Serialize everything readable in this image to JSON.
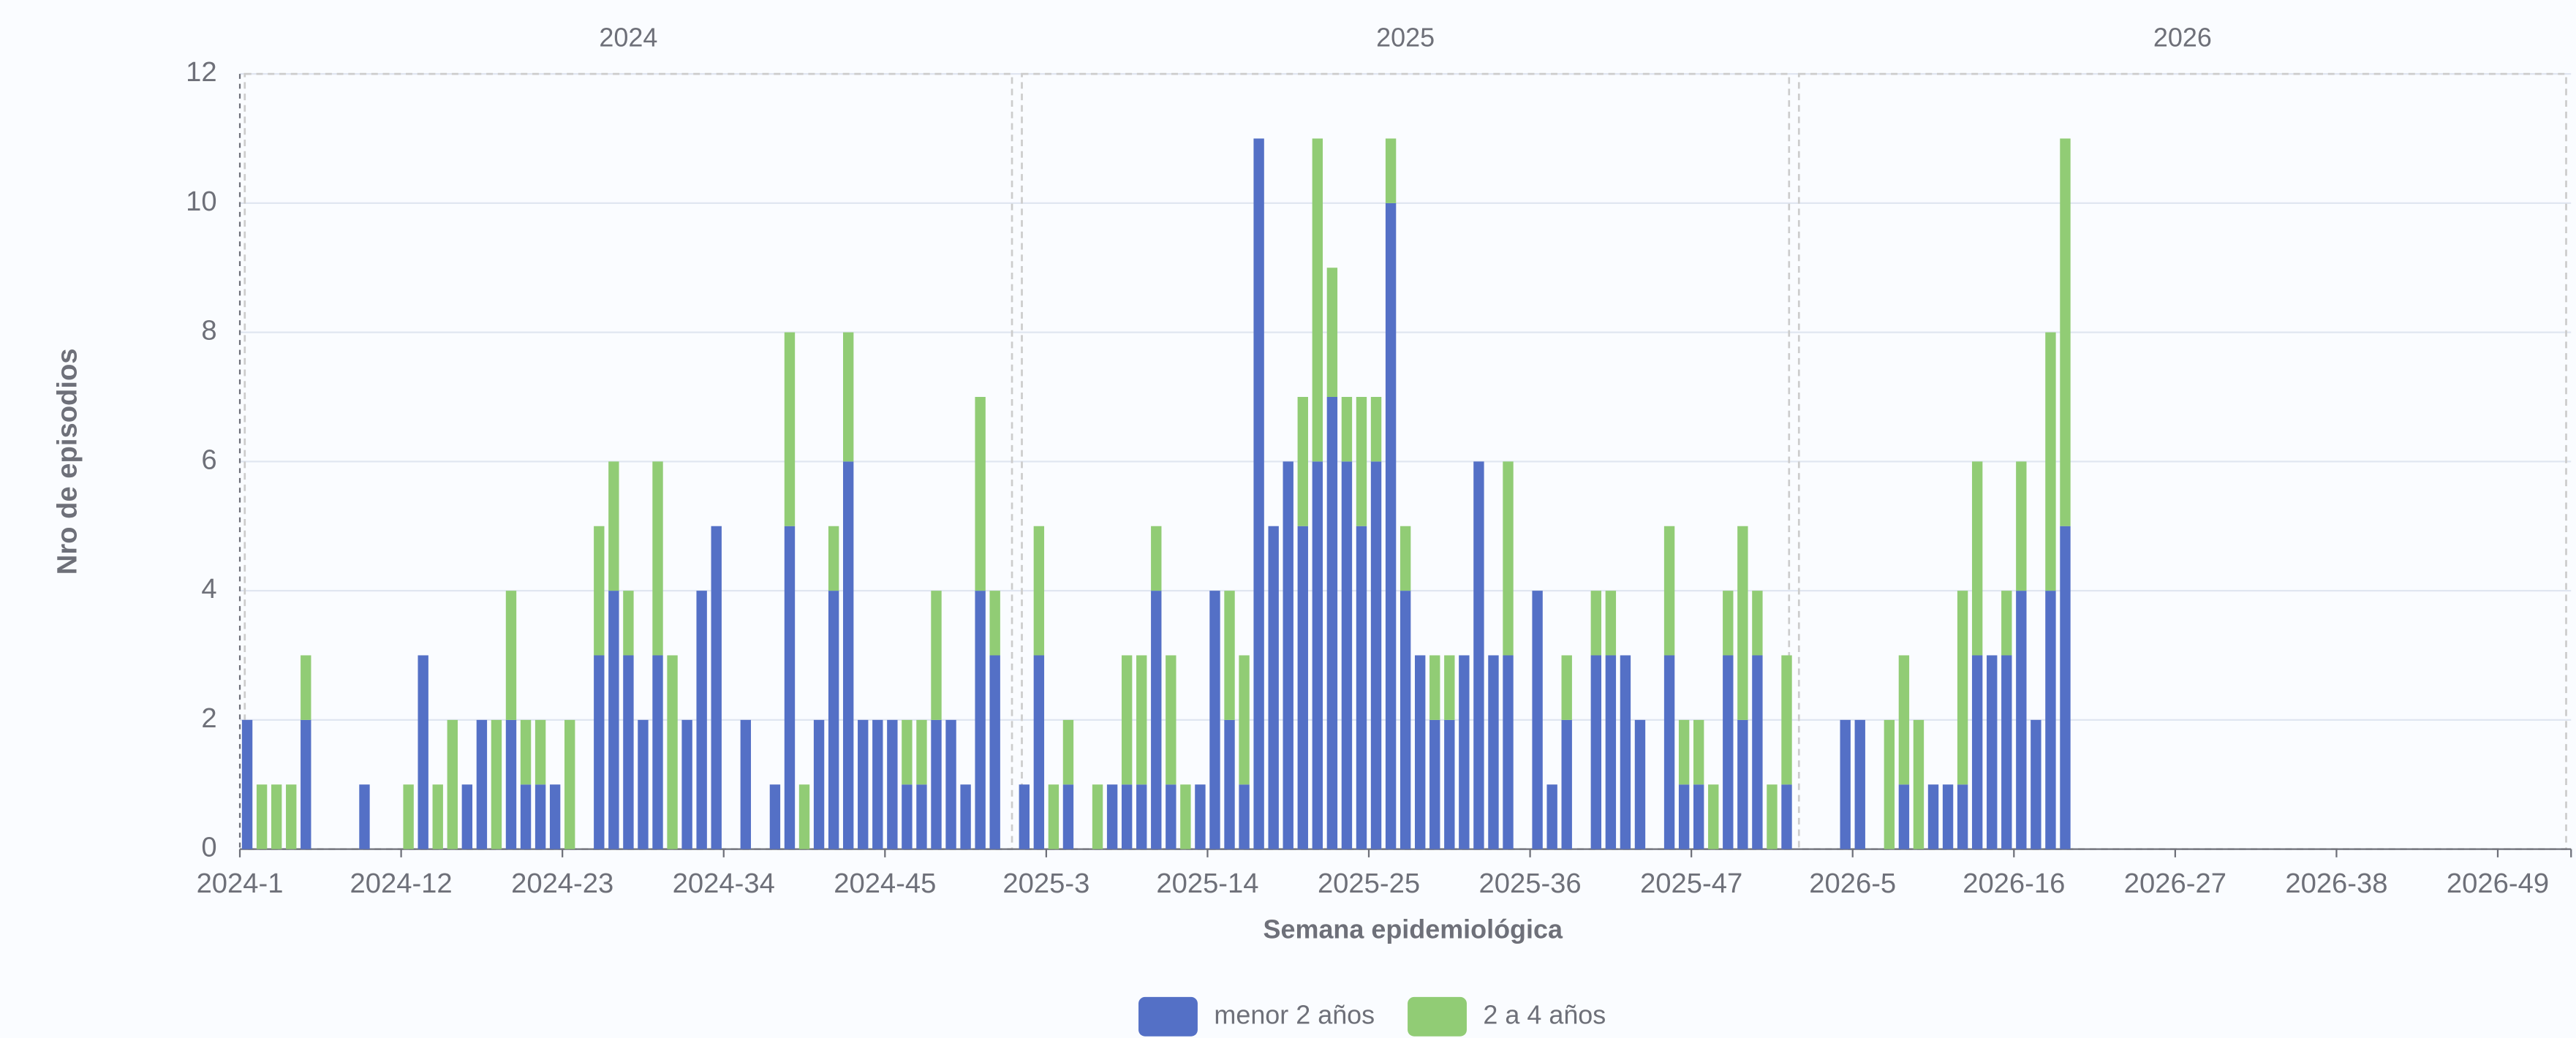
{
  "chart_data": {
    "type": "stacked_bar",
    "facets": [
      "2024",
      "2025",
      "2026"
    ],
    "x_label": "Semana epidemiológica",
    "y_label": "Nro de episodios",
    "categories": [
      "2024-1",
      null,
      null,
      null,
      null,
      null,
      null,
      null,
      null,
      null,
      null,
      "2024-12",
      null,
      null,
      null,
      null,
      null,
      null,
      null,
      null,
      null,
      null,
      "2024-23",
      null,
      null,
      null,
      null,
      null,
      null,
      null,
      null,
      null,
      null,
      "2024-34",
      null,
      null,
      null,
      null,
      null,
      null,
      null,
      null,
      null,
      null,
      "2024-45",
      null,
      null,
      null,
      null,
      null,
      null,
      null,
      null,
      null,
      null,
      "2025-3",
      null,
      null,
      null,
      null,
      null,
      null,
      null,
      null,
      null,
      null,
      "2025-14",
      null,
      null,
      null,
      null,
      null,
      null,
      null,
      null,
      null,
      null,
      "2025-25",
      null,
      null,
      null,
      null,
      null,
      null,
      null,
      null,
      null,
      null,
      "2025-36",
      null,
      null,
      null,
      null,
      null,
      null,
      null,
      null,
      null,
      null,
      "2025-47",
      null,
      null,
      null,
      null,
      null,
      null,
      null,
      null,
      null,
      null,
      "2026-5",
      null,
      null,
      null,
      null,
      null,
      null,
      null,
      null,
      null,
      null,
      "2026-16",
      null,
      null,
      null,
      null,
      null,
      null,
      null,
      null,
      null,
      null,
      "2026-27",
      null,
      null,
      null,
      null,
      null,
      null,
      null,
      null,
      null,
      null,
      "2026-38",
      null,
      null,
      null,
      null,
      null,
      null,
      null,
      null,
      null,
      null,
      "2026-49",
      null,
      null,
      null,
      null
    ],
    "series": [
      {
        "name": "menor 2 años",
        "color": "#5470c6",
        "values": [
          2,
          0,
          0,
          0,
          2,
          0,
          0,
          0,
          1,
          0,
          0,
          0,
          3,
          0,
          0,
          1,
          2,
          0,
          2,
          1,
          1,
          1,
          0,
          0,
          3,
          4,
          3,
          2,
          3,
          0,
          2,
          4,
          5,
          0,
          2,
          0,
          1,
          5,
          0,
          2,
          4,
          6,
          2,
          2,
          2,
          1,
          1,
          2,
          2,
          1,
          4,
          3,
          0,
          1,
          3,
          0,
          1,
          0,
          0,
          1,
          1,
          1,
          4,
          1,
          0,
          1,
          4,
          2,
          1,
          11,
          5,
          6,
          5,
          6,
          7,
          6,
          5,
          6,
          10,
          4,
          3,
          2,
          2,
          3,
          6,
          3,
          3,
          0,
          4,
          1,
          2,
          0,
          3,
          3,
          3,
          2,
          0,
          3,
          1,
          1,
          0,
          3,
          2,
          3,
          0,
          1,
          0,
          0,
          0,
          2,
          2,
          0,
          0,
          1,
          0,
          1,
          1,
          1,
          3,
          3,
          3,
          4,
          2,
          4,
          5,
          0,
          0,
          0,
          0,
          0,
          0,
          0,
          0,
          0,
          0,
          0,
          0,
          0,
          0,
          0,
          0,
          0,
          0,
          0,
          0,
          0,
          0,
          0,
          0,
          0,
          0,
          0,
          0,
          0,
          0,
          0,
          0,
          0,
          0
        ]
      },
      {
        "name": "2 a 4 años",
        "color": "#91cc75",
        "values": [
          0,
          1,
          1,
          1,
          1,
          0,
          0,
          0,
          0,
          0,
          0,
          1,
          0,
          1,
          2,
          0,
          0,
          2,
          2,
          1,
          1,
          0,
          2,
          0,
          2,
          2,
          1,
          0,
          3,
          3,
          0,
          0,
          0,
          0,
          0,
          0,
          0,
          3,
          1,
          0,
          1,
          2,
          0,
          0,
          0,
          1,
          1,
          2,
          0,
          0,
          3,
          1,
          0,
          0,
          2,
          1,
          1,
          0,
          1,
          0,
          2,
          2,
          1,
          2,
          1,
          0,
          0,
          2,
          2,
          0,
          0,
          0,
          2,
          5,
          2,
          1,
          2,
          1,
          1,
          1,
          0,
          1,
          1,
          0,
          0,
          0,
          3,
          0,
          0,
          0,
          1,
          0,
          1,
          1,
          0,
          0,
          0,
          2,
          1,
          1,
          1,
          1,
          3,
          1,
          1,
          2,
          0,
          0,
          0,
          0,
          0,
          0,
          2,
          2,
          2,
          0,
          0,
          3,
          3,
          0,
          1,
          2,
          0,
          4,
          6,
          0,
          0,
          0,
          0,
          0,
          0,
          0,
          0,
          0,
          0,
          0,
          0,
          0,
          0,
          0,
          0,
          0,
          0,
          0,
          0,
          0,
          0,
          0,
          0,
          0,
          0,
          0,
          0,
          0,
          0,
          0,
          0,
          0,
          0
        ]
      }
    ],
    "ylim": [
      0,
      12
    ],
    "yticks": [
      0,
      2,
      4,
      6,
      8,
      10,
      12
    ],
    "grid": true,
    "legend": "bottom"
  }
}
